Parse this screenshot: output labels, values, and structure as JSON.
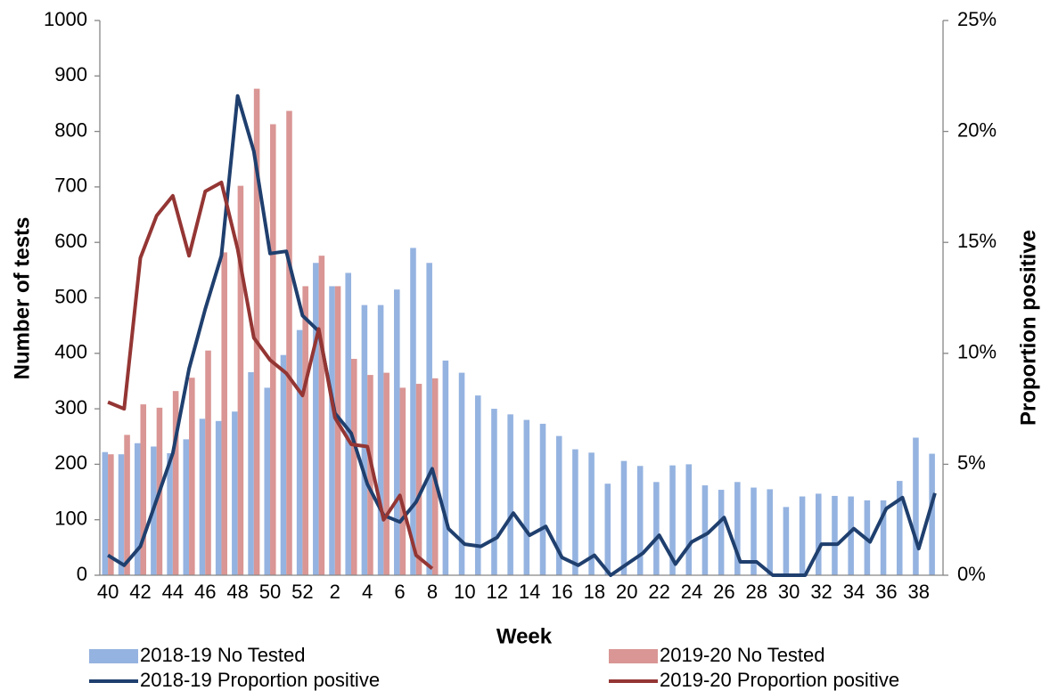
{
  "chart_data": {
    "type": "bar",
    "x_label": "Week",
    "y_label": "Number of tests",
    "y2_label": "Proportion positive",
    "categories": [
      "40",
      null,
      "42",
      null,
      "44",
      null,
      "46",
      null,
      "48",
      null,
      "50",
      null,
      "52",
      null,
      "2",
      null,
      "4",
      null,
      "6",
      null,
      "8",
      null,
      "10",
      null,
      "12",
      null,
      "14",
      null,
      "16",
      null,
      "18",
      null,
      "20",
      null,
      "22",
      null,
      "24",
      null,
      "26",
      null,
      "28",
      null,
      "30",
      null,
      "32",
      null,
      "34",
      null,
      "36",
      null,
      "38",
      null
    ],
    "ylim": [
      0,
      1000
    ],
    "yticks": [
      0,
      100,
      200,
      300,
      400,
      500,
      600,
      700,
      800,
      900,
      1000
    ],
    "y2lim": [
      0,
      25
    ],
    "y2ticks": [
      {
        "value": 0,
        "label": "0%"
      },
      {
        "value": 5,
        "label": "5%"
      },
      {
        "value": 10,
        "label": "10%"
      },
      {
        "value": 15,
        "label": "15%"
      },
      {
        "value": 20,
        "label": "20%"
      },
      {
        "value": 25,
        "label": "25%"
      }
    ],
    "series": [
      {
        "name": "2018-19 No Tested",
        "type": "bar",
        "color": "#95b3e0",
        "values": [
          222,
          218,
          238,
          232,
          220,
          245,
          282,
          278,
          295,
          366,
          338,
          397,
          442,
          563,
          521,
          545,
          487,
          487,
          515,
          590,
          563,
          387,
          365,
          324,
          300,
          290,
          280,
          273,
          251,
          227,
          221,
          165,
          206,
          197,
          168,
          198,
          200,
          162,
          154,
          168,
          158,
          155,
          123,
          142,
          147,
          143,
          142,
          135,
          135,
          170,
          248,
          219
        ]
      },
      {
        "name": "2019-20 No Tested",
        "type": "bar",
        "color": "#d99694",
        "values": [
          218,
          253,
          308,
          302,
          332,
          356,
          405,
          582,
          702,
          877,
          813,
          837,
          521,
          576,
          521,
          390,
          361,
          365,
          338,
          345,
          355,
          null,
          null,
          null,
          null,
          null,
          null,
          null,
          null,
          null,
          null,
          null,
          null,
          null,
          null,
          null,
          null,
          null,
          null,
          null,
          null,
          null,
          null,
          null,
          null,
          null,
          null,
          null,
          null,
          null,
          null,
          null
        ]
      },
      {
        "name": "2018-19 Proportion positive",
        "type": "line",
        "axis": "y2",
        "color": "#1f3f6e",
        "values": [
          0.9,
          0.45,
          1.3,
          3.4,
          5.5,
          9.3,
          12,
          14.4,
          21.6,
          19.1,
          14.5,
          14.6,
          11.7,
          11,
          7.3,
          6.4,
          4.1,
          2.7,
          2.4,
          3.3,
          4.8,
          2.1,
          1.4,
          1.3,
          1.7,
          2.8,
          1.8,
          2.2,
          0.8,
          0.45,
          0.9,
          0,
          0.5,
          1,
          1.8,
          0.5,
          1.5,
          1.9,
          2.6,
          0.6,
          0.6,
          0,
          0,
          0,
          1.4,
          1.4,
          2.1,
          1.5,
          3,
          3.5,
          1.2,
          3.7
        ]
      },
      {
        "name": "2019-20 Proportion positive",
        "type": "line",
        "axis": "y2",
        "color": "#943634",
        "values": [
          7.8,
          7.5,
          14.3,
          16.2,
          17.1,
          14.4,
          17.3,
          17.7,
          14.7,
          10.7,
          9.7,
          9.1,
          8.1,
          11.1,
          7.1,
          5.9,
          5.8,
          2.5,
          3.6,
          0.9,
          0.3,
          null,
          null,
          null,
          null,
          null,
          null,
          null,
          null,
          null,
          null,
          null,
          null,
          null,
          null,
          null,
          null,
          null,
          null,
          null,
          null,
          null,
          null,
          null,
          null,
          null,
          null,
          null,
          null,
          null,
          null,
          null
        ]
      }
    ]
  }
}
